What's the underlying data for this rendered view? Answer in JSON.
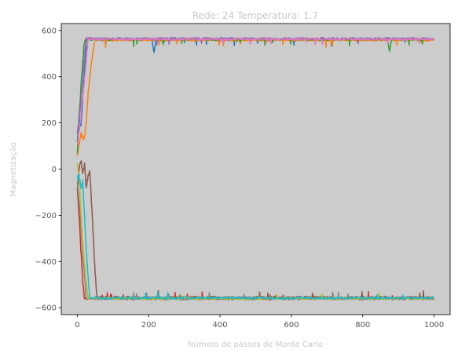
{
  "chart_data": {
    "type": "line",
    "title": "Rede: 24 Temperatura: 1.7",
    "xlabel": "Número de passos de Monte Carlo",
    "ylabel": "Magnetização",
    "xlim": [
      -45,
      1045
    ],
    "ylim": [
      -630,
      630
    ],
    "xticks": [
      0,
      200,
      400,
      600,
      800,
      1000
    ],
    "yticks": [
      -600,
      -400,
      -200,
      0,
      200,
      400,
      600
    ],
    "xtick_labels": [
      "0",
      "200",
      "400",
      "600",
      "800",
      "1000"
    ],
    "ytick_labels": [
      "−600",
      "−400",
      "−200",
      "0",
      "200",
      "400",
      "600"
    ],
    "plot_background": "#cccccc",
    "grid": false,
    "legend": "none",
    "steps": 1000,
    "series": [
      {
        "color": "#1f77b4",
        "start": 120,
        "settle_step": 30,
        "equilibrium": 560,
        "noise": 7,
        "path": [
          [
            0,
            120
          ],
          [
            5,
            220
          ],
          [
            10,
            180
          ],
          [
            15,
            300
          ],
          [
            20,
            420
          ],
          [
            25,
            520
          ],
          [
            30,
            560
          ]
        ],
        "dips": [
          [
            215,
            505
          ]
        ]
      },
      {
        "color": "#ff7f0e",
        "start": 60,
        "settle_step": 50,
        "equilibrium": 558,
        "noise": 7,
        "path": [
          [
            0,
            60
          ],
          [
            10,
            150
          ],
          [
            20,
            130
          ],
          [
            25,
            200
          ],
          [
            30,
            320
          ],
          [
            35,
            400
          ],
          [
            40,
            470
          ],
          [
            45,
            520
          ],
          [
            50,
            558
          ]
        ],
        "dips": []
      },
      {
        "color": "#2ca02c",
        "start": 70,
        "settle_step": 22,
        "equilibrium": 562,
        "noise": 8,
        "path": [
          [
            0,
            70
          ],
          [
            6,
            250
          ],
          [
            12,
            400
          ],
          [
            18,
            520
          ],
          [
            22,
            562
          ]
        ],
        "dips": [
          [
            875,
            510
          ]
        ]
      },
      {
        "color": "#d62728",
        "start": -80,
        "settle_step": 20,
        "equilibrium": -560,
        "noise": 8,
        "path": [
          [
            0,
            -80
          ],
          [
            5,
            -200
          ],
          [
            10,
            -350
          ],
          [
            15,
            -480
          ],
          [
            20,
            -560
          ]
        ],
        "dips": []
      },
      {
        "color": "#9467bd",
        "start": 150,
        "settle_step": 25,
        "equilibrium": 565,
        "noise": 8,
        "path": [
          [
            0,
            150
          ],
          [
            8,
            260
          ],
          [
            15,
            380
          ],
          [
            20,
            500
          ],
          [
            25,
            565
          ]
        ],
        "dips": []
      },
      {
        "color": "#8c564b",
        "start": -100,
        "settle_step": 55,
        "equilibrium": -555,
        "noise": 7,
        "path": [
          [
            0,
            -100
          ],
          [
            5,
            0
          ],
          [
            10,
            40
          ],
          [
            15,
            -20
          ],
          [
            20,
            20
          ],
          [
            25,
            -80
          ],
          [
            30,
            -30
          ],
          [
            35,
            -10
          ],
          [
            40,
            -150
          ],
          [
            45,
            -300
          ],
          [
            50,
            -450
          ],
          [
            55,
            -555
          ]
        ],
        "dips": []
      },
      {
        "color": "#e377c2",
        "start": 100,
        "settle_step": 30,
        "equilibrium": 562,
        "noise": 6,
        "path": [
          [
            0,
            100
          ],
          [
            10,
            230
          ],
          [
            20,
            380
          ],
          [
            30,
            562
          ]
        ],
        "dips": []
      },
      {
        "color": "#7f7f7f",
        "start": -60,
        "settle_step": 25,
        "equilibrium": -562,
        "noise": 6,
        "path": [
          [
            0,
            -60
          ],
          [
            8,
            -200
          ],
          [
            16,
            -380
          ],
          [
            25,
            -562
          ]
        ],
        "dips": []
      },
      {
        "color": "#bcbd22",
        "start": 20,
        "settle_step": 30,
        "equilibrium": -560,
        "noise": 8,
        "path": [
          [
            0,
            20
          ],
          [
            6,
            -60
          ],
          [
            12,
            -250
          ],
          [
            20,
            -420
          ],
          [
            30,
            -560
          ]
        ],
        "dips": []
      },
      {
        "color": "#17becf",
        "start": -40,
        "settle_step": 35,
        "equilibrium": -558,
        "noise": 8,
        "path": [
          [
            0,
            -40
          ],
          [
            5,
            -30
          ],
          [
            10,
            -80
          ],
          [
            15,
            -50
          ],
          [
            20,
            -200
          ],
          [
            25,
            -350
          ],
          [
            30,
            -460
          ],
          [
            35,
            -558
          ]
        ],
        "dips": []
      }
    ]
  }
}
